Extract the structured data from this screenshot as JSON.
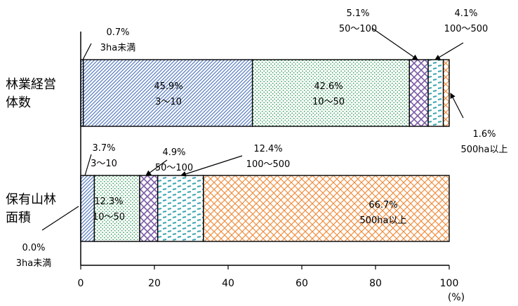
{
  "chart_data": {
    "type": "bar",
    "orientation": "horizontal",
    "stacked": true,
    "xlim": [
      0,
      100
    ],
    "x_ticks": [
      "0",
      "20",
      "40",
      "60",
      "80",
      "100"
    ],
    "unit": "(%)",
    "categories": [
      [
        "林業経営",
        "体数"
      ],
      [
        "保有山林",
        "面積"
      ]
    ],
    "series": [
      {
        "name": "3ha未満",
        "values": [
          0.7,
          0.0
        ],
        "pattern": "diag-blue",
        "color": "#4a6fb5"
      },
      {
        "name": "3～10",
        "values": [
          45.9,
          3.7
        ],
        "pattern": "diag-blue2",
        "color": "#7d9bd1"
      },
      {
        "name": "10～50",
        "values": [
          42.6,
          12.3
        ],
        "pattern": "dots-green",
        "color": "#2e9a56"
      },
      {
        "name": "50～100",
        "values": [
          5.1,
          4.9
        ],
        "pattern": "cross-purple",
        "color": "#7a5aa6"
      },
      {
        "name": "100～500",
        "values": [
          4.1,
          12.4
        ],
        "pattern": "dash-teal",
        "color": "#3aa6b0"
      },
      {
        "name": "500ha以上",
        "values": [
          1.6,
          66.7
        ],
        "pattern": "lattice-orange",
        "color": "#f08c3c"
      }
    ],
    "labels": [
      [
        {
          "pct": "0.7%",
          "range": "3ha未満"
        },
        {
          "pct": "45.9%",
          "range": "3～10"
        },
        {
          "pct": "42.6%",
          "range": "10～50"
        },
        {
          "pct": "5.1%",
          "range": "50～100"
        },
        {
          "pct": "4.1%",
          "range": "100～500"
        },
        {
          "pct": "1.6%",
          "range": "500ha以上"
        }
      ],
      [
        {
          "pct": "0.0%",
          "range": "3ha未満"
        },
        {
          "pct": "3.7%",
          "range": "3～10"
        },
        {
          "pct": "12.3%",
          "range": "10～50"
        },
        {
          "pct": "4.9%",
          "range": "50～100"
        },
        {
          "pct": "12.4%",
          "range": "100～500"
        },
        {
          "pct": "66.7%",
          "range": "500ha以上"
        }
      ]
    ]
  }
}
